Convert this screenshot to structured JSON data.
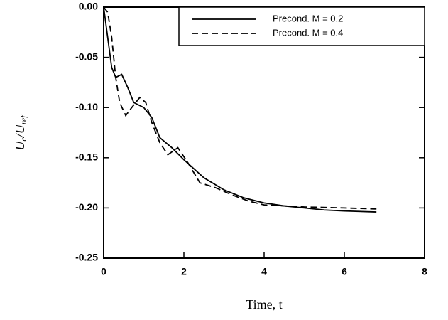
{
  "chart_data": {
    "type": "line",
    "x_label": "Time, t",
    "y_label": [
      {
        "text": "U",
        "sub": false
      },
      {
        "text": "c",
        "sub": true
      },
      {
        "text": "/U",
        "sub": false
      },
      {
        "text": "ref",
        "sub": true
      }
    ],
    "xlim": [
      0,
      8
    ],
    "xticks": [
      0,
      2,
      4,
      6,
      8
    ],
    "ylim": [
      -0.25,
      0
    ],
    "yticks": [
      {
        "value": -0.25,
        "label": "-0.25"
      },
      {
        "value": -0.2,
        "label": "-0.20"
      },
      {
        "value": -0.15,
        "label": "-0.15"
      },
      {
        "value": -0.1,
        "label": "-0.10"
      },
      {
        "value": -0.05,
        "label": "-0.05"
      },
      {
        "value": 0,
        "label": "0.00"
      }
    ],
    "legend": "upper right",
    "series": [
      {
        "name": "Precond. M = 0.2",
        "color": "#000000",
        "dash": "solid",
        "x": [
          0,
          0.1,
          0.2,
          0.3,
          0.45,
          0.6,
          0.75,
          1.0,
          1.2,
          1.4,
          1.7,
          2.0,
          2.5,
          3.0,
          3.5,
          4.0,
          4.5,
          5.0,
          5.5,
          6.0,
          6.8
        ],
        "values": [
          0,
          -0.03,
          -0.06,
          -0.07,
          -0.067,
          -0.08,
          -0.095,
          -0.1,
          -0.11,
          -0.13,
          -0.14,
          -0.152,
          -0.17,
          -0.182,
          -0.19,
          -0.195,
          -0.198,
          -0.2,
          -0.202,
          -0.203,
          -0.204
        ]
      },
      {
        "name": "Precond. M = 0.4",
        "color": "#000000",
        "dash": "dashed",
        "x": [
          0,
          0.1,
          0.2,
          0.3,
          0.4,
          0.55,
          0.7,
          0.9,
          1.05,
          1.2,
          1.4,
          1.6,
          1.85,
          2.1,
          2.4,
          2.8,
          3.2,
          3.6,
          4.0,
          5.0,
          6.0,
          6.8
        ],
        "values": [
          0,
          -0.005,
          -0.03,
          -0.07,
          -0.095,
          -0.108,
          -0.1,
          -0.09,
          -0.095,
          -0.115,
          -0.135,
          -0.147,
          -0.14,
          -0.155,
          -0.175,
          -0.18,
          -0.187,
          -0.193,
          -0.197,
          -0.199,
          -0.2,
          -0.201
        ]
      }
    ]
  }
}
